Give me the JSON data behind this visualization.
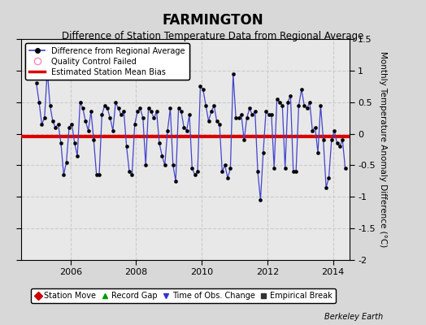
{
  "title": "FARMINGTON",
  "subtitle": "Difference of Station Temperature Data from Regional Average",
  "ylabel": "Monthly Temperature Anomaly Difference (°C)",
  "bias": -0.04,
  "ylim": [
    -2,
    1.5
  ],
  "xlim": [
    2004.5,
    2014.5
  ],
  "xticks": [
    2006,
    2008,
    2010,
    2012,
    2014
  ],
  "yticks": [
    -2,
    -1.5,
    -1,
    -0.5,
    0,
    0.5,
    1,
    1.5
  ],
  "ytick_labels": [
    "-2",
    "-1.5",
    "-1",
    "-0.5",
    "0",
    "0.5",
    "1",
    "1.5"
  ],
  "fig_background_color": "#d8d8d8",
  "plot_background_color": "#e8e8e8",
  "line_color": "#4444cc",
  "bias_color": "#dd0000",
  "grid_color": "#cccccc",
  "title_fontsize": 12,
  "subtitle_fontsize": 8.5,
  "tick_fontsize": 8,
  "ylabel_fontsize": 7.5,
  "berkeley_earth_text": "Berkeley Earth",
  "legend1_entries": [
    {
      "label": "Difference from Regional Average",
      "color": "#4444cc",
      "marker": "o",
      "markersize": 4,
      "linestyle": "-"
    },
    {
      "label": "Quality Control Failed",
      "color": "#ff88bb",
      "marker": "o",
      "markersize": 6,
      "linestyle": "none"
    },
    {
      "label": "Estimated Station Mean Bias",
      "color": "#dd0000",
      "marker": "none",
      "linestyle": "-",
      "linewidth": 2.5
    }
  ],
  "legend2_entries": [
    {
      "label": "Station Move",
      "color": "#cc0000",
      "marker": "D",
      "markersize": 5
    },
    {
      "label": "Record Gap",
      "color": "#009900",
      "marker": "^",
      "markersize": 5
    },
    {
      "label": "Time of Obs. Change",
      "color": "#3333cc",
      "marker": "v",
      "markersize": 5
    },
    {
      "label": "Empirical Break",
      "color": "#333333",
      "marker": "s",
      "markersize": 4
    }
  ],
  "time_series": [
    2004.958,
    2005.042,
    2005.125,
    2005.208,
    2005.292,
    2005.375,
    2005.458,
    2005.542,
    2005.625,
    2005.708,
    2005.792,
    2005.875,
    2005.958,
    2006.042,
    2006.125,
    2006.208,
    2006.292,
    2006.375,
    2006.458,
    2006.542,
    2006.625,
    2006.708,
    2006.792,
    2006.875,
    2006.958,
    2007.042,
    2007.125,
    2007.208,
    2007.292,
    2007.375,
    2007.458,
    2007.542,
    2007.625,
    2007.708,
    2007.792,
    2007.875,
    2007.958,
    2008.042,
    2008.125,
    2008.208,
    2008.292,
    2008.375,
    2008.458,
    2008.542,
    2008.625,
    2008.708,
    2008.792,
    2008.875,
    2008.958,
    2009.042,
    2009.125,
    2009.208,
    2009.292,
    2009.375,
    2009.458,
    2009.542,
    2009.625,
    2009.708,
    2009.792,
    2009.875,
    2009.958,
    2010.042,
    2010.125,
    2010.208,
    2010.292,
    2010.375,
    2010.458,
    2010.542,
    2010.625,
    2010.708,
    2010.792,
    2010.875,
    2010.958,
    2011.042,
    2011.125,
    2011.208,
    2011.292,
    2011.375,
    2011.458,
    2011.542,
    2011.625,
    2011.708,
    2011.792,
    2011.875,
    2011.958,
    2012.042,
    2012.125,
    2012.208,
    2012.292,
    2012.375,
    2012.458,
    2012.542,
    2012.625,
    2012.708,
    2012.792,
    2012.875,
    2012.958,
    2013.042,
    2013.125,
    2013.208,
    2013.292,
    2013.375,
    2013.458,
    2013.542,
    2013.625,
    2013.708,
    2013.792,
    2013.875,
    2013.958,
    2014.042,
    2014.125,
    2014.208,
    2014.292,
    2014.375
  ],
  "values": [
    0.8,
    0.5,
    0.15,
    0.25,
    1.0,
    0.45,
    0.2,
    0.1,
    0.15,
    -0.15,
    -0.65,
    -0.45,
    0.1,
    0.15,
    -0.15,
    -0.35,
    0.5,
    0.4,
    0.2,
    0.05,
    0.35,
    -0.1,
    -0.65,
    -0.65,
    0.3,
    0.45,
    0.4,
    0.25,
    0.05,
    0.5,
    0.4,
    0.3,
    0.35,
    -0.2,
    -0.6,
    -0.65,
    0.15,
    0.35,
    0.4,
    0.25,
    -0.5,
    0.4,
    0.35,
    0.25,
    0.35,
    -0.15,
    -0.35,
    -0.5,
    0.05,
    0.4,
    -0.5,
    -0.75,
    0.4,
    0.35,
    0.1,
    0.05,
    0.3,
    -0.55,
    -0.65,
    -0.6,
    0.75,
    0.7,
    0.45,
    0.2,
    0.35,
    0.45,
    0.2,
    0.15,
    -0.6,
    -0.5,
    -0.7,
    -0.55,
    0.95,
    0.25,
    0.25,
    0.3,
    -0.1,
    0.25,
    0.4,
    0.3,
    0.35,
    -0.6,
    -1.05,
    -0.3,
    0.35,
    0.3,
    0.3,
    -0.55,
    0.55,
    0.5,
    0.45,
    -0.55,
    0.5,
    0.6,
    -0.6,
    -0.6,
    0.45,
    0.7,
    0.45,
    0.4,
    0.5,
    0.05,
    0.1,
    -0.3,
    0.45,
    -0.1,
    -0.85,
    -0.7,
    -0.1,
    0.05,
    -0.15,
    -0.2,
    -0.1,
    -0.55
  ]
}
